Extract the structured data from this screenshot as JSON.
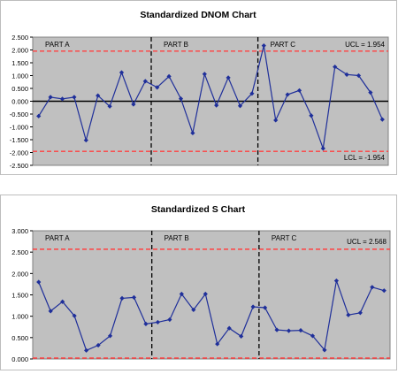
{
  "chart_data": [
    {
      "type": "line",
      "title": "Standardized DNOM Chart",
      "x": [
        1,
        2,
        3,
        4,
        5,
        6,
        7,
        8,
        9,
        10,
        11,
        12,
        13,
        14,
        15,
        16,
        17,
        18,
        19,
        20,
        21,
        22,
        23,
        24,
        25,
        26,
        27,
        28,
        29,
        30
      ],
      "series": [
        {
          "values": [
            -0.58,
            0.16,
            0.09,
            0.16,
            -1.52,
            0.22,
            -0.2,
            1.12,
            -0.12,
            0.78,
            0.54,
            0.97,
            0.1,
            -1.24,
            1.06,
            -0.16,
            0.92,
            -0.18,
            0.3,
            2.17,
            -0.74,
            0.26,
            0.42,
            -0.56,
            -1.84,
            1.34,
            1.04,
            1.0,
            0.34,
            -0.71
          ],
          "color": "#1f2f9a"
        }
      ],
      "ylim": [
        -2.5,
        2.5
      ],
      "yticks": [
        "2.500",
        "2.000",
        "1.500",
        "1.000",
        "0.500",
        "0.000",
        "-0.500",
        "-1.000",
        "-1.500",
        "-2.000",
        "-2.500"
      ],
      "limits": {
        "ucl": 1.954,
        "lcl": -1.954,
        "center": 0.0,
        "ucl_label": "UCL = 1.954",
        "lcl_label": "LCL = -1.954"
      },
      "phase_breaks_after": [
        10,
        19
      ],
      "phase_labels": [
        "PART A",
        "PART B",
        "PART C"
      ],
      "plot_background": "#c0c0c0",
      "limit_color": "#ff4040",
      "grid": true,
      "legend": "none"
    },
    {
      "type": "line",
      "title": "Standardized S Chart",
      "x": [
        1,
        2,
        3,
        4,
        5,
        6,
        7,
        8,
        9,
        10,
        11,
        12,
        13,
        14,
        15,
        16,
        17,
        18,
        19,
        20,
        21,
        22,
        23,
        24,
        25,
        26,
        27,
        28,
        29,
        30
      ],
      "series": [
        {
          "values": [
            1.8,
            1.12,
            1.34,
            1.01,
            0.2,
            0.32,
            0.54,
            1.42,
            1.44,
            0.82,
            0.86,
            0.92,
            1.52,
            1.15,
            1.52,
            0.35,
            0.72,
            0.53,
            1.22,
            1.2,
            0.68,
            0.66,
            0.67,
            0.54,
            0.21,
            1.83,
            1.03,
            1.08,
            1.68,
            1.6
          ],
          "color": "#1f2f9a"
        }
      ],
      "ylim": [
        0.0,
        3.0
      ],
      "yticks": [
        "3.000",
        "2.500",
        "2.000",
        "1.500",
        "1.000",
        "0.500",
        "0.000"
      ],
      "limits": {
        "ucl": 2.568,
        "lcl": 0.0,
        "ucl_label": "UCL = 2.568"
      },
      "phase_breaks_after": [
        10,
        19
      ],
      "phase_labels": [
        "PART A",
        "PART B",
        "PART C"
      ],
      "plot_background": "#c0c0c0",
      "limit_color": "#ff4040",
      "grid": true,
      "legend": "none"
    }
  ]
}
